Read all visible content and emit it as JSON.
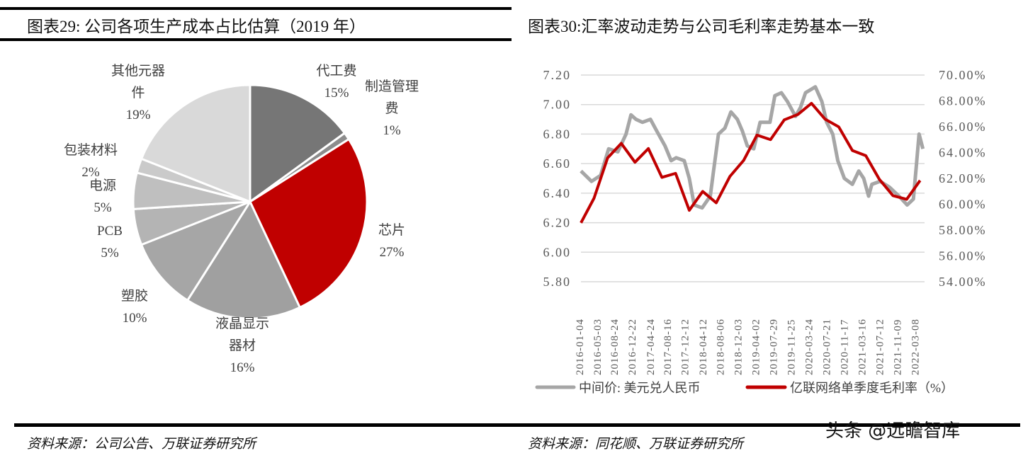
{
  "left": {
    "title": "图表29:  公司各项生产成本占比估算（2019 年）",
    "source": "资料来源：公司公告、万联证券研究所"
  },
  "right": {
    "title": "图表30:汇率波动走势与公司毛利率走势基本一致",
    "source": "资料来源：同花顺、万联证券研究所"
  },
  "watermark": "头条 @远瞻智库",
  "chart_data": [
    {
      "type": "pie",
      "title": "公司各项生产成本占比估算（2019 年）",
      "slices": [
        {
          "lines": [
            "代工费"
          ],
          "label": "代工费",
          "value": 15,
          "pct": "15%",
          "color": "#767676"
        },
        {
          "lines": [
            "制造管理",
            "费"
          ],
          "label": "制造管理费",
          "value": 1,
          "pct": "1%",
          "color": "#8c8c8c"
        },
        {
          "lines": [
            "芯片"
          ],
          "label": "芯片",
          "value": 27,
          "pct": "27%",
          "color": "#c00000"
        },
        {
          "lines": [
            "液晶显示",
            "器材"
          ],
          "label": "液晶显示器材",
          "value": 16,
          "pct": "16%",
          "color": "#a0a0a0"
        },
        {
          "lines": [
            "塑胶"
          ],
          "label": "塑胶",
          "value": 10,
          "pct": "10%",
          "color": "#a6a6a6"
        },
        {
          "lines": [
            "PCB"
          ],
          "label": "PCB",
          "value": 5,
          "pct": "5%",
          "color": "#b4b4b4"
        },
        {
          "lines": [
            "电源"
          ],
          "label": "电源",
          "value": 5,
          "pct": "5%",
          "color": "#bfbfbf"
        },
        {
          "lines": [
            "包装材料"
          ],
          "label": "包装材料",
          "value": 2,
          "pct": "2%",
          "color": "#cacaca"
        },
        {
          "lines": [
            "其他元器",
            "件"
          ],
          "label": "其他元器件",
          "value": 19,
          "pct": "19%",
          "color": "#d9d9d9"
        }
      ]
    },
    {
      "type": "line",
      "title": "汇率波动走势与公司毛利率走势基本一致",
      "x_range": [
        "2016-01-04",
        "2022-05-01"
      ],
      "x_ticks": [
        "2016-01-04",
        "2016-05-03",
        "2016-08-24",
        "2016-12-22",
        "2017-04-24",
        "2017-08-16",
        "2017-12-12",
        "2018-04-12",
        "2018-08-06",
        "2018-12-03",
        "2019-04-02",
        "2019-07-29",
        "2019-11-25",
        "2020-03-24",
        "2020-07-21",
        "2020-11-17",
        "2021-03-16",
        "2021-07-12",
        "2021-11-09",
        "2022-03-08"
      ],
      "y_left": {
        "range": [
          5.8,
          7.2
        ],
        "ticks": [
          "7.20",
          "7.00",
          "6.80",
          "6.60",
          "6.40",
          "6.20",
          "6.00",
          "5.80"
        ]
      },
      "y_right": {
        "range": [
          54,
          70
        ],
        "ticks": [
          "70.00%",
          "68.00%",
          "66.00%",
          "64.00%",
          "62.00%",
          "60.00%",
          "58.00%",
          "56.00%",
          "54.00%"
        ]
      },
      "grid": true,
      "legend_position": "bottom",
      "series": [
        {
          "name": "中间价: 美元兑人民币",
          "axis": "left",
          "color": "#a6a6a6",
          "points": [
            [
              "2016-01-04",
              6.55
            ],
            [
              "2016-03-15",
              6.48
            ],
            [
              "2016-05-15",
              6.52
            ],
            [
              "2016-07-08",
              6.7
            ],
            [
              "2016-09-08",
              6.68
            ],
            [
              "2016-11-02",
              6.8
            ],
            [
              "2016-12-05",
              6.93
            ],
            [
              "2017-01-08",
              6.9
            ],
            [
              "2017-02-20",
              6.88
            ],
            [
              "2017-04-15",
              6.9
            ],
            [
              "2017-05-28",
              6.82
            ],
            [
              "2017-07-22",
              6.72
            ],
            [
              "2017-09-01",
              6.62
            ],
            [
              "2017-10-05",
              6.64
            ],
            [
              "2017-11-28",
              6.62
            ],
            [
              "2018-01-01",
              6.5
            ],
            [
              "2018-02-03",
              6.32
            ],
            [
              "2018-03-28",
              6.3
            ],
            [
              "2018-05-22",
              6.38
            ],
            [
              "2018-06-13",
              6.55
            ],
            [
              "2018-07-16",
              6.8
            ],
            [
              "2018-08-28",
              6.84
            ],
            [
              "2018-10-08",
              6.95
            ],
            [
              "2018-11-20",
              6.9
            ],
            [
              "2018-12-24",
              6.82
            ],
            [
              "2019-01-26",
              6.72
            ],
            [
              "2019-03-10",
              6.7
            ],
            [
              "2019-04-22",
              6.88
            ],
            [
              "2019-06-27",
              6.88
            ],
            [
              "2019-07-30",
              7.06
            ],
            [
              "2019-09-12",
              7.08
            ],
            [
              "2019-10-23",
              7.02
            ],
            [
              "2019-12-16",
              6.92
            ],
            [
              "2020-01-18",
              6.98
            ],
            [
              "2020-02-21",
              7.08
            ],
            [
              "2020-04-27",
              7.12
            ],
            [
              "2020-06-10",
              7.02
            ],
            [
              "2020-07-12",
              6.88
            ],
            [
              "2020-08-22",
              6.8
            ],
            [
              "2020-09-25",
              6.62
            ],
            [
              "2020-11-08",
              6.5
            ],
            [
              "2021-01-01",
              6.46
            ],
            [
              "2021-02-13",
              6.55
            ],
            [
              "2021-03-18",
              6.5
            ],
            [
              "2021-04-20",
              6.38
            ],
            [
              "2021-05-12",
              6.46
            ],
            [
              "2021-07-06",
              6.48
            ],
            [
              "2021-09-08",
              6.44
            ],
            [
              "2021-11-10",
              6.38
            ],
            [
              "2022-01-04",
              6.32
            ],
            [
              "2022-02-15",
              6.36
            ],
            [
              "2022-03-08",
              6.6
            ],
            [
              "2022-03-25",
              6.8
            ],
            [
              "2022-04-20",
              6.7
            ]
          ]
        },
        {
          "name": "亿联网络单季度毛利率（%）",
          "axis": "right",
          "color": "#c00000",
          "points": [
            [
              "2016-01-04",
              58.56
            ],
            [
              "2016-04-01",
              60.47
            ],
            [
              "2016-07-01",
              63.58
            ],
            [
              "2016-10-01",
              64.71
            ],
            [
              "2017-01-01",
              63.25
            ],
            [
              "2017-04-01",
              64.31
            ],
            [
              "2017-07-01",
              62.08
            ],
            [
              "2017-10-01",
              62.39
            ],
            [
              "2018-01-01",
              59.53
            ],
            [
              "2018-04-01",
              60.99
            ],
            [
              "2018-07-01",
              60.11
            ],
            [
              "2018-10-01",
              62.15
            ],
            [
              "2019-01-01",
              63.39
            ],
            [
              "2019-04-01",
              65.35
            ],
            [
              "2019-07-01",
              65.0
            ],
            [
              "2019-10-01",
              66.53
            ],
            [
              "2020-01-01",
              66.95
            ],
            [
              "2020-04-01",
              67.81
            ],
            [
              "2020-07-01",
              66.59
            ],
            [
              "2020-10-01",
              65.99
            ],
            [
              "2021-01-01",
              64.16
            ],
            [
              "2021-04-01",
              63.76
            ],
            [
              "2021-07-01",
              61.93
            ],
            [
              "2021-10-01",
              60.66
            ],
            [
              "2022-01-01",
              60.38
            ],
            [
              "2022-04-01",
              61.84
            ]
          ]
        }
      ]
    }
  ]
}
